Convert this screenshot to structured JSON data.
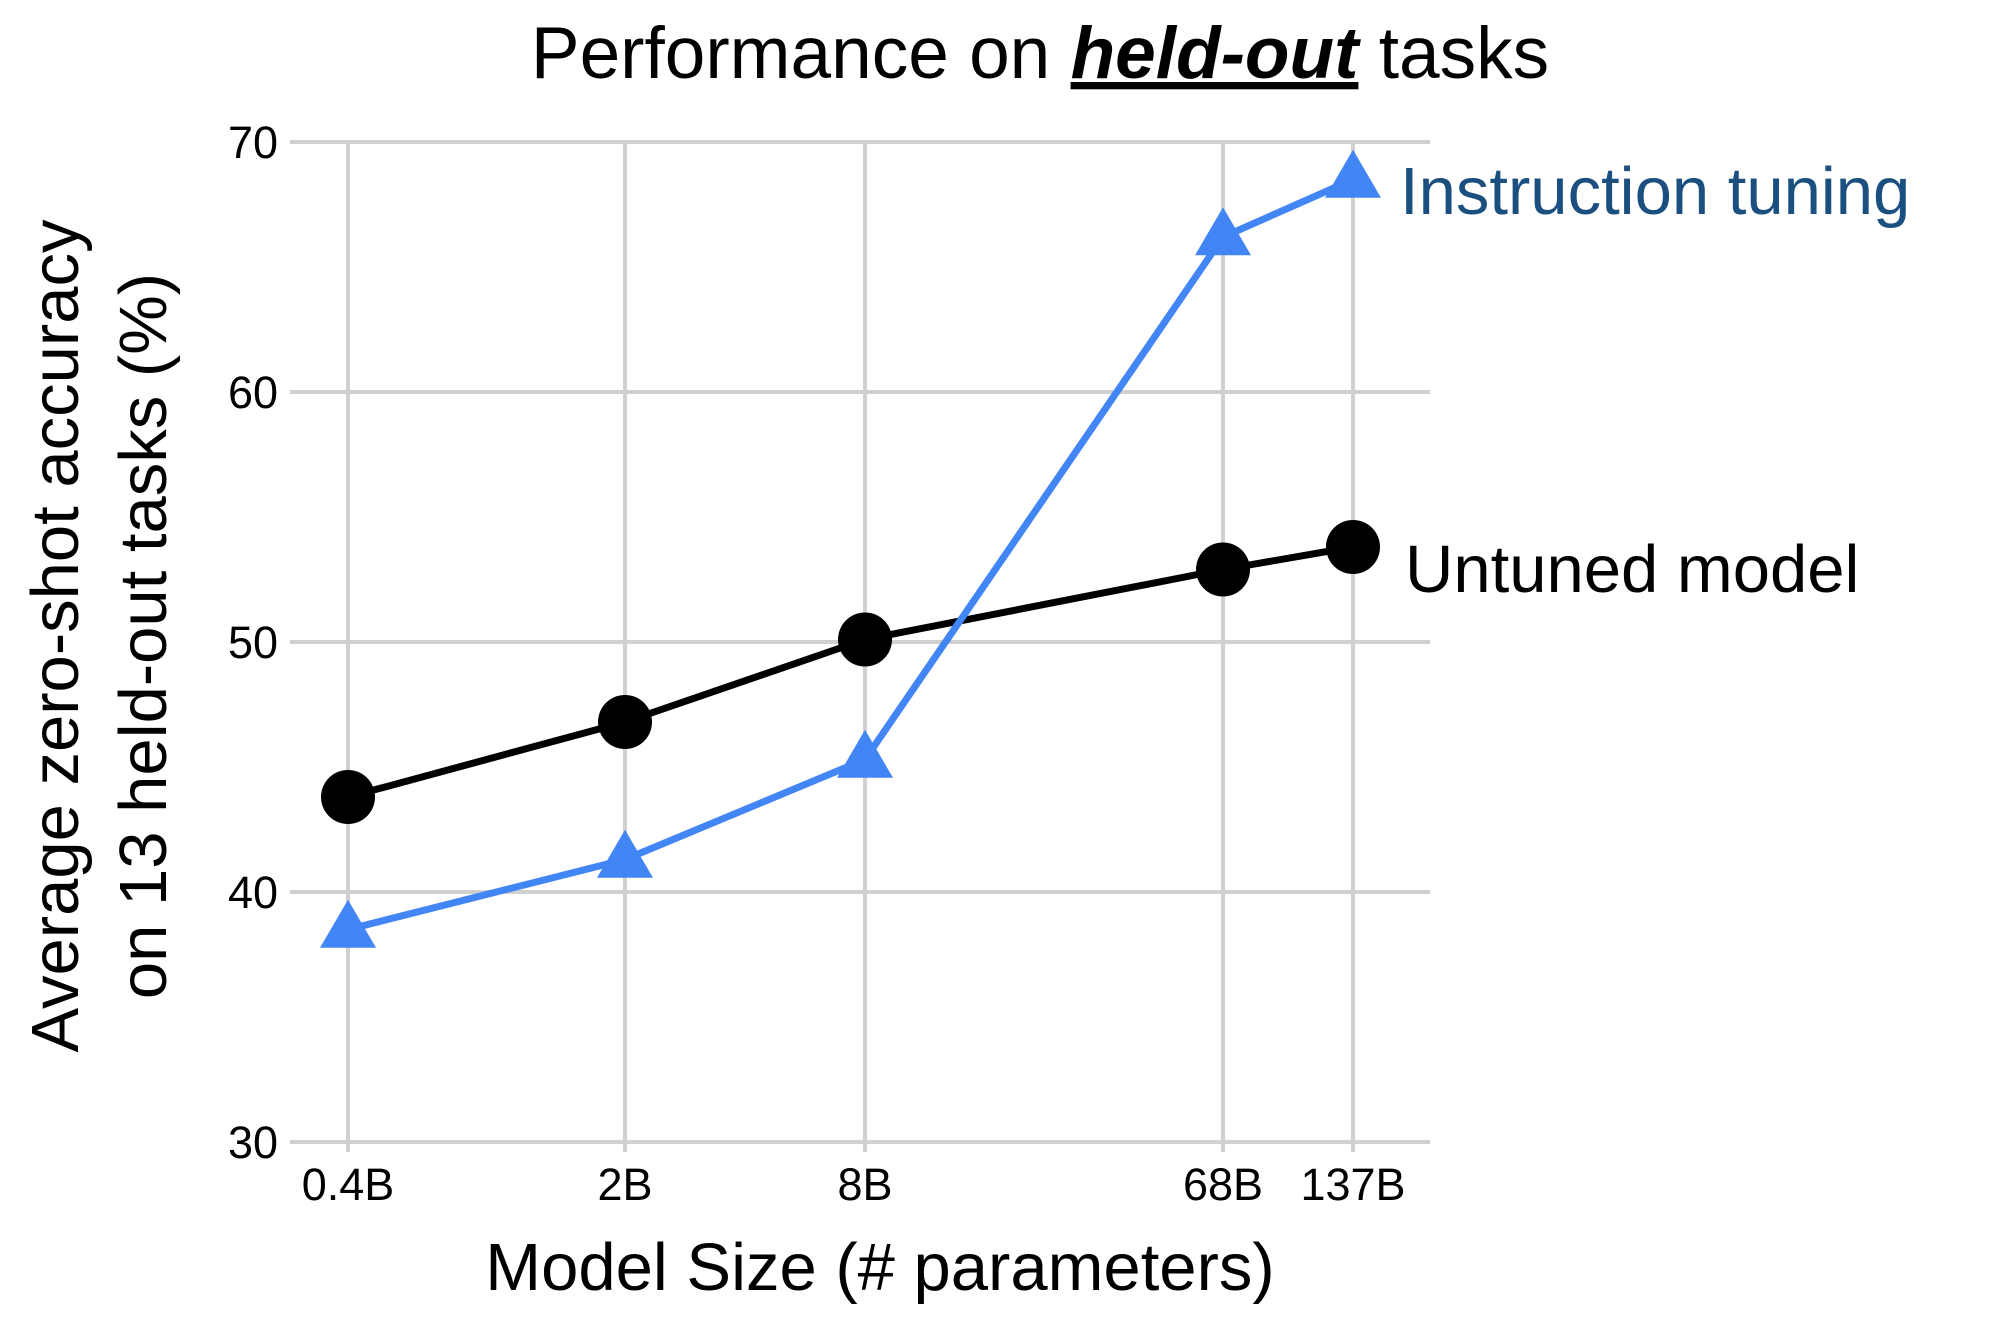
{
  "chart_data": {
    "type": "line",
    "title_parts": [
      "Performance on ",
      "held-out",
      " tasks"
    ],
    "xlabel": "Model Size (# parameters)",
    "ylabel_lines": [
      "Average zero-shot accuracy",
      "on 13 held-out tasks (%)"
    ],
    "categories": [
      "0.4B",
      "2B",
      "8B",
      "68B",
      "137B"
    ],
    "x_log_params_billions": [
      0.4,
      2,
      8,
      68,
      137
    ],
    "ylim": [
      30,
      70
    ],
    "yticks": [
      "30",
      "40",
      "50",
      "60",
      "70"
    ],
    "grid": true,
    "series": [
      {
        "name": "Untuned model",
        "color": "#000000",
        "marker": "circle",
        "values": [
          43.8,
          46.8,
          50.1,
          52.9,
          53.8
        ]
      },
      {
        "name": "Instruction tuning",
        "color": "#4285f4",
        "label_color": "#1a4f7f",
        "marker": "triangle",
        "values": [
          38.5,
          41.3,
          45.3,
          66.2,
          68.5
        ]
      }
    ]
  }
}
